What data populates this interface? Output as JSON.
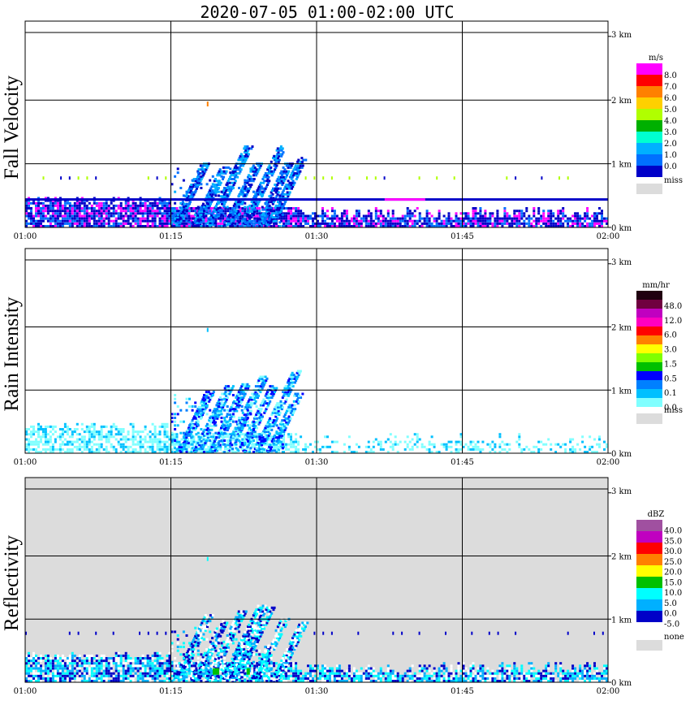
{
  "title": "2020-07-05   01:00-02:00 UTC",
  "x_ticks": [
    "01:00",
    "01:15",
    "01:30",
    "01:45",
    "02:00"
  ],
  "y_ticks": [
    "0 km",
    "1 km",
    "2 km",
    "3 km"
  ],
  "chart_data": [
    {
      "type": "heatmap",
      "ylabel": "Fall Velocity",
      "xlim": [
        "01:00",
        "02:00"
      ],
      "ylim_km": [
        0,
        3.2
      ],
      "colorbar": {
        "unit": "m/s",
        "labels": [
          "8.0",
          "7.0",
          "6.0",
          "5.0",
          "4.0",
          "3.0",
          "2.0",
          "1.0",
          "0.0"
        ],
        "colors": [
          "#ff00ff",
          "#ff0000",
          "#ff8000",
          "#ffd000",
          "#b0ff00",
          "#00b000",
          "#00ffd0",
          "#00b0ff",
          "#0070ff",
          "#0000c8"
        ],
        "missing_label": "miss",
        "missing_color": "#dcdcdc"
      },
      "background_color": "#ffffff"
    },
    {
      "type": "heatmap",
      "ylabel": "Rain Intensity",
      "xlim": [
        "01:00",
        "02:00"
      ],
      "ylim_km": [
        0,
        3.2
      ],
      "colorbar": {
        "unit": "mm/hr",
        "labels": [
          "48.0",
          "12.0",
          "6.0",
          "3.0",
          "1.5",
          "0.5",
          "0.1",
          "0.0"
        ],
        "colors": [
          "#200010",
          "#700040",
          "#c000c0",
          "#ff00c0",
          "#ff0000",
          "#ff8000",
          "#ffff00",
          "#80ff00",
          "#00c000",
          "#0000ff",
          "#0080ff",
          "#00c0ff",
          "#80ffff"
        ],
        "missing_label": "miss",
        "missing_color": "#dcdcdc"
      },
      "background_color": "#ffffff"
    },
    {
      "type": "heatmap",
      "ylabel": "Reflectivity",
      "xlim": [
        "01:00",
        "02:00"
      ],
      "ylim_km": [
        0,
        3.2
      ],
      "colorbar": {
        "unit": "dBZ",
        "labels": [
          "40.0",
          "35.0",
          "30.0",
          "25.0",
          "20.0",
          "15.0",
          "10.0",
          "5.0",
          "0.0",
          "-5.0"
        ],
        "colors": [
          "#a050a0",
          "#c000c0",
          "#ff0000",
          "#ff8000",
          "#ffff00",
          "#00c000",
          "#00ffff",
          "#00b0ff",
          "#0000c8",
          "#ffffff"
        ],
        "missing_label": "none",
        "missing_color": "#dcdcdc"
      },
      "background_color": "#dcdcdc"
    }
  ]
}
